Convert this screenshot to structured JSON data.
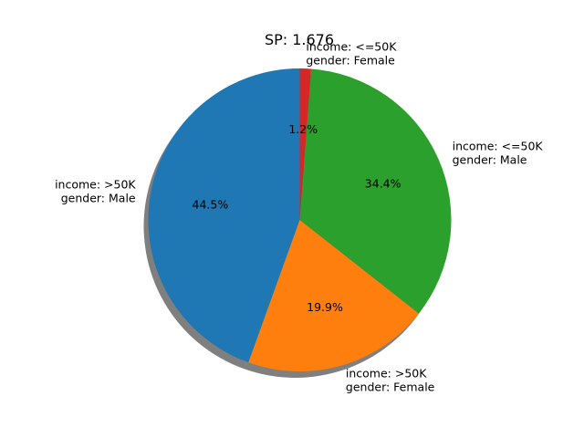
{
  "chart_data": {
    "type": "pie",
    "title": "SP: 1.676",
    "slices": [
      {
        "label_lines": [
          "income: >50K",
          "gender: Male"
        ],
        "value": 44.5,
        "pct_label": "44.5%",
        "color": "#1f77b4"
      },
      {
        "label_lines": [
          "income: >50K",
          "gender: Female"
        ],
        "value": 19.9,
        "pct_label": "19.9%",
        "color": "#ff7f0e"
      },
      {
        "label_lines": [
          "income: <=50K",
          "gender: Male"
        ],
        "value": 34.4,
        "pct_label": "34.4%",
        "color": "#2ca02c"
      },
      {
        "label_lines": [
          "income: <=50K",
          "gender: Female"
        ],
        "value": 1.2,
        "pct_label": "1.2%",
        "color": "#d62728"
      }
    ],
    "start_angle_deg": 90,
    "direction": "counterclockwise",
    "shadow": true,
    "legend": false
  }
}
